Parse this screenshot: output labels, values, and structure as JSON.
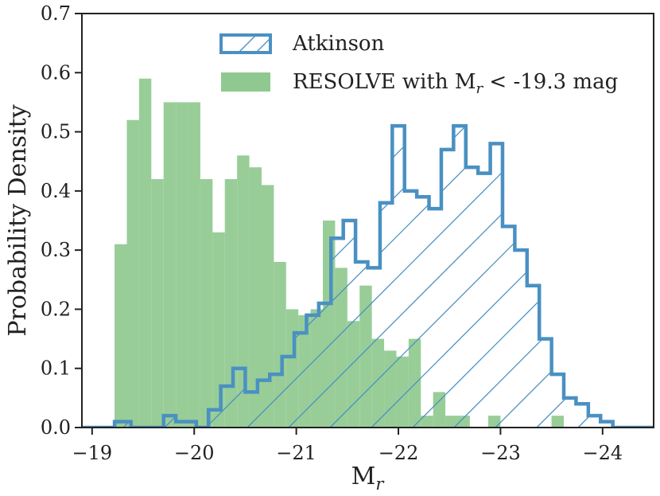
{
  "chart_data": {
    "type": "histogram",
    "xlabel": "M",
    "xlabel_sub": "r",
    "ylabel": "Probability Density",
    "xlim": [
      -18.9,
      -24.5
    ],
    "ylim": [
      0.0,
      0.7
    ],
    "xticks": [
      -19,
      -20,
      -21,
      -22,
      -23,
      -24
    ],
    "xtick_labels": [
      "−19",
      "−20",
      "−21",
      "−22",
      "−23",
      "−24"
    ],
    "yticks": [
      0.0,
      0.1,
      0.2,
      0.3,
      0.4,
      0.5,
      0.6,
      0.7
    ],
    "ytick_labels": [
      "0.0",
      "0.1",
      "0.2",
      "0.3",
      "0.4",
      "0.5",
      "0.6",
      "0.7"
    ],
    "grid": false,
    "legend_position": "top-center",
    "series": [
      {
        "name": "Atkinson",
        "style": "step-hatched",
        "color": "#4a90c2",
        "hatch_color": "#4a90c2",
        "bins": [
          [
            -18.9,
            -19.22,
            0.0
          ],
          [
            -19.22,
            -19.38,
            0.01
          ],
          [
            -19.38,
            -19.7,
            0.0
          ],
          [
            -19.7,
            -19.82,
            0.02
          ],
          [
            -19.82,
            -20.02,
            0.01
          ],
          [
            -20.02,
            -20.14,
            0.0
          ],
          [
            -20.14,
            -20.26,
            0.03
          ],
          [
            -20.26,
            -20.38,
            0.07
          ],
          [
            -20.38,
            -20.5,
            0.1
          ],
          [
            -20.5,
            -20.62,
            0.06
          ],
          [
            -20.62,
            -20.74,
            0.08
          ],
          [
            -20.74,
            -20.86,
            0.09
          ],
          [
            -20.86,
            -20.98,
            0.12
          ],
          [
            -20.98,
            -21.1,
            0.16
          ],
          [
            -21.1,
            -21.22,
            0.19
          ],
          [
            -21.22,
            -21.34,
            0.21
          ],
          [
            -21.34,
            -21.46,
            0.32
          ],
          [
            -21.46,
            -21.58,
            0.35
          ],
          [
            -21.58,
            -21.7,
            0.28
          ],
          [
            -21.7,
            -21.82,
            0.27
          ],
          [
            -21.82,
            -21.94,
            0.38
          ],
          [
            -21.94,
            -22.06,
            0.51
          ],
          [
            -22.06,
            -22.18,
            0.4
          ],
          [
            -22.18,
            -22.3,
            0.39
          ],
          [
            -22.3,
            -22.42,
            0.37
          ],
          [
            -22.42,
            -22.54,
            0.47
          ],
          [
            -22.54,
            -22.66,
            0.51
          ],
          [
            -22.66,
            -22.78,
            0.44
          ],
          [
            -22.78,
            -22.9,
            0.43
          ],
          [
            -22.9,
            -23.02,
            0.48
          ],
          [
            -23.02,
            -23.14,
            0.34
          ],
          [
            -23.14,
            -23.26,
            0.3
          ],
          [
            -23.26,
            -23.38,
            0.24
          ],
          [
            -23.38,
            -23.5,
            0.15
          ],
          [
            -23.5,
            -23.62,
            0.09
          ],
          [
            -23.62,
            -23.74,
            0.05
          ],
          [
            -23.74,
            -23.86,
            0.04
          ],
          [
            -23.86,
            -23.98,
            0.02
          ],
          [
            -23.98,
            -24.1,
            0.01
          ],
          [
            -24.1,
            -24.5,
            0.0
          ]
        ]
      },
      {
        "name": "RESOLVE with M",
        "name_sub": "r",
        "name_suffix": " < -19.3 mag",
        "style": "filled",
        "color": "#8fc98f",
        "bins": [
          [
            -19.22,
            -19.34,
            0.31
          ],
          [
            -19.34,
            -19.46,
            0.52
          ],
          [
            -19.46,
            -19.58,
            0.59
          ],
          [
            -19.58,
            -19.7,
            0.42
          ],
          [
            -19.7,
            -19.82,
            0.55
          ],
          [
            -19.82,
            -19.94,
            0.55
          ],
          [
            -19.94,
            -20.06,
            0.55
          ],
          [
            -20.06,
            -20.18,
            0.42
          ],
          [
            -20.18,
            -20.3,
            0.33
          ],
          [
            -20.3,
            -20.42,
            0.42
          ],
          [
            -20.42,
            -20.54,
            0.46
          ],
          [
            -20.54,
            -20.66,
            0.44
          ],
          [
            -20.66,
            -20.78,
            0.41
          ],
          [
            -20.78,
            -20.9,
            0.28
          ],
          [
            -20.9,
            -21.02,
            0.2
          ],
          [
            -21.02,
            -21.14,
            0.19
          ],
          [
            -21.14,
            -21.26,
            0.2
          ],
          [
            -21.26,
            -21.38,
            0.35
          ],
          [
            -21.38,
            -21.5,
            0.27
          ],
          [
            -21.5,
            -21.62,
            0.18
          ],
          [
            -21.62,
            -21.74,
            0.24
          ],
          [
            -21.74,
            -21.86,
            0.15
          ],
          [
            -21.86,
            -21.98,
            0.13
          ],
          [
            -21.98,
            -22.1,
            0.12
          ],
          [
            -22.1,
            -22.22,
            0.15
          ],
          [
            -22.22,
            -22.34,
            0.02
          ],
          [
            -22.34,
            -22.46,
            0.06
          ],
          [
            -22.46,
            -22.58,
            0.02
          ],
          [
            -22.58,
            -22.7,
            0.02
          ],
          [
            -22.88,
            -23.0,
            0.02
          ],
          [
            -23.5,
            -23.62,
            0.02
          ]
        ]
      }
    ]
  }
}
